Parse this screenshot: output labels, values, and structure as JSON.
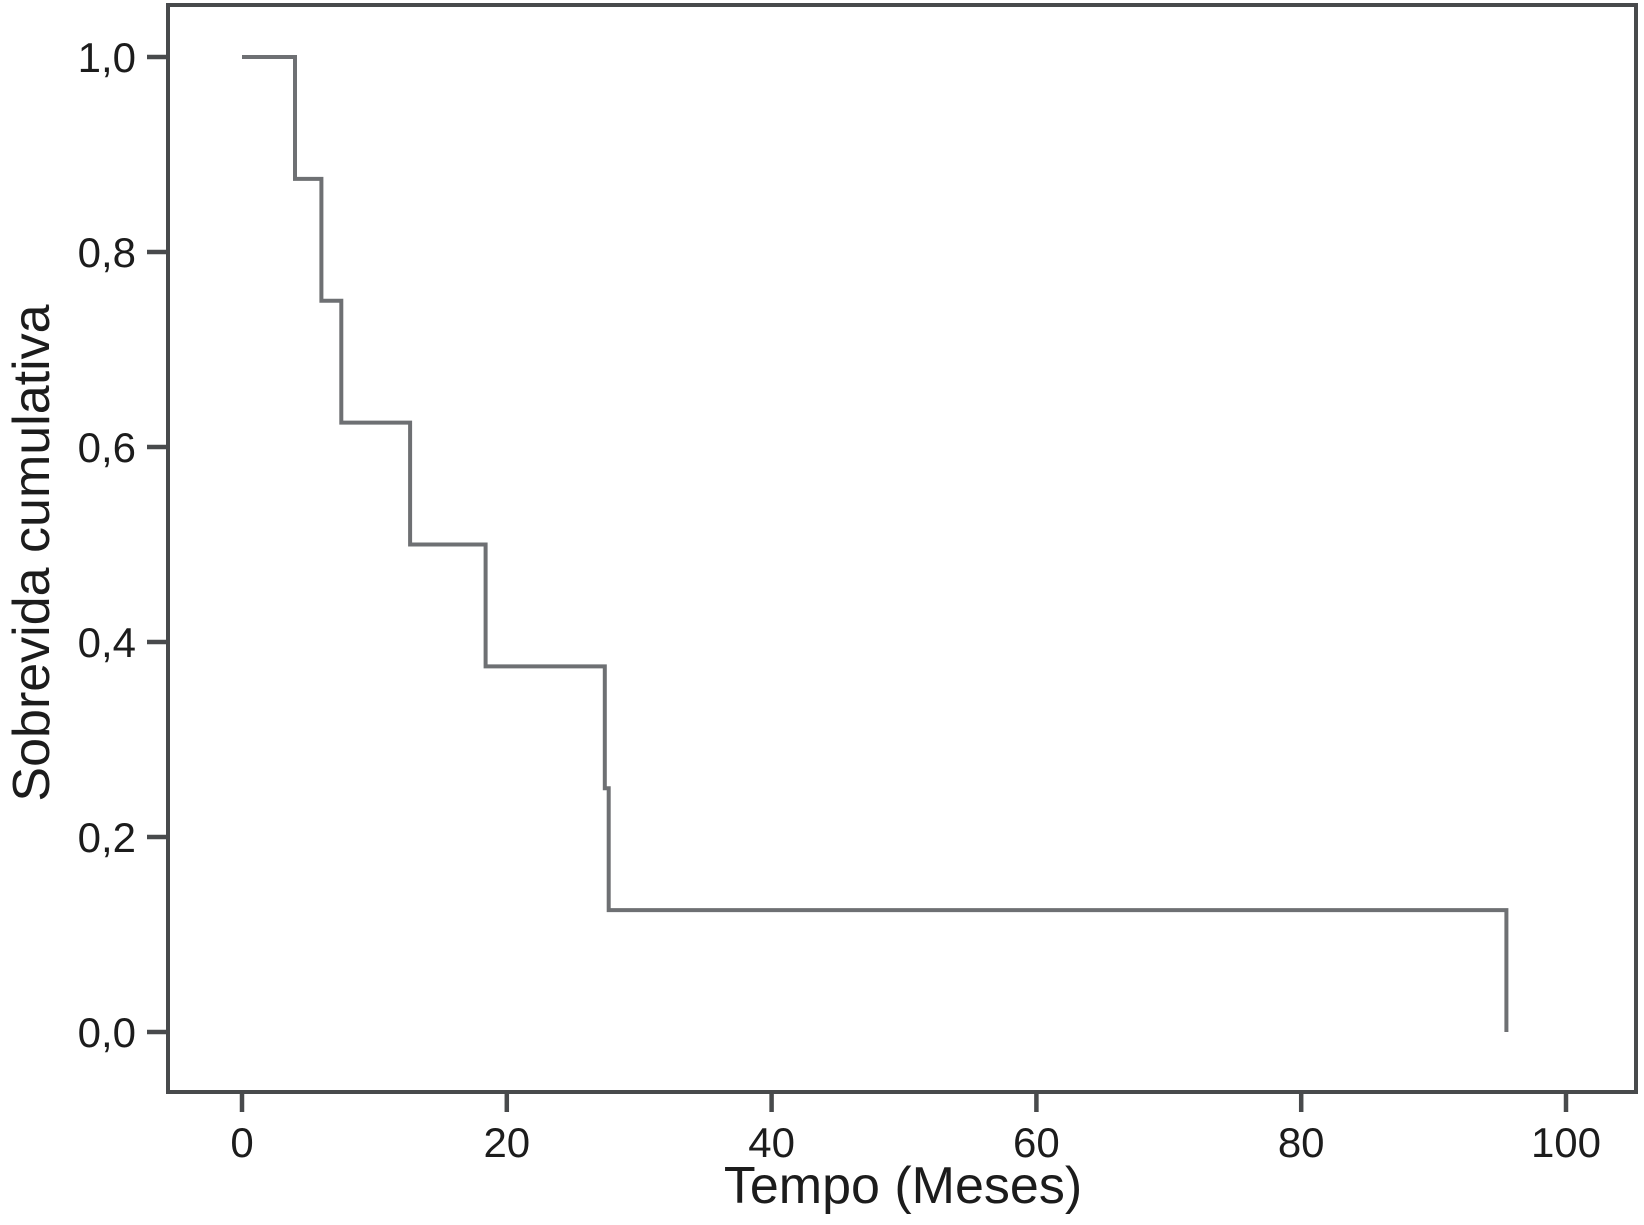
{
  "figure": {
    "kind": "kaplan-meier-survival-plot",
    "background": "#ffffff"
  },
  "colors": {
    "axis": "#484a4c",
    "text": "#1c1c1c",
    "curve": "#6e7073",
    "background": "#ffffff"
  },
  "chart_data": {
    "type": "line",
    "subtype": "step-function-survival",
    "title": "",
    "xlabel": "Tempo (Meses)",
    "ylabel": "Sobrevida cumulativa",
    "grid": false,
    "legend": null,
    "x_axis_range": [
      -5.6,
      105.4
    ],
    "y_axis_range": [
      -0.06,
      1.05
    ],
    "x_ticks": [
      {
        "value": 0,
        "label": "0"
      },
      {
        "value": 20,
        "label": "20"
      },
      {
        "value": 40,
        "label": "40"
      },
      {
        "value": 60,
        "label": "60"
      },
      {
        "value": 80,
        "label": "80"
      },
      {
        "value": 100,
        "label": "100"
      }
    ],
    "y_ticks": [
      {
        "value": 1.0,
        "label": "1,0"
      },
      {
        "value": 0.8,
        "label": "0,8"
      },
      {
        "value": 0.6,
        "label": "0,6"
      },
      {
        "value": 0.4,
        "label": "0,4"
      },
      {
        "value": 0.2,
        "label": "0,2"
      },
      {
        "value": 0.0,
        "label": "0,0"
      }
    ],
    "series": [
      {
        "name": "sobrevida-cumulativa",
        "color": "#6e7073",
        "step_points": [
          [
            0,
            1.0
          ],
          [
            4,
            1.0
          ],
          [
            4,
            0.875
          ],
          [
            6,
            0.875
          ],
          [
            6,
            0.75
          ],
          [
            7.5,
            0.75
          ],
          [
            7.5,
            0.625
          ],
          [
            12.7,
            0.625
          ],
          [
            12.7,
            0.5
          ],
          [
            18.4,
            0.5
          ],
          [
            18.4,
            0.375
          ],
          [
            27.4,
            0.375
          ],
          [
            27.4,
            0.25
          ],
          [
            27.7,
            0.25
          ],
          [
            27.7,
            0.125
          ],
          [
            95.5,
            0.125
          ],
          [
            95.5,
            0.0
          ]
        ]
      }
    ],
    "event_times_months": [
      4,
      6,
      7.5,
      12.7,
      18.4,
      27.4,
      27.7,
      95.5
    ],
    "survival_levels": [
      1.0,
      0.875,
      0.75,
      0.625,
      0.5,
      0.375,
      0.25,
      0.125,
      0.0
    ]
  }
}
